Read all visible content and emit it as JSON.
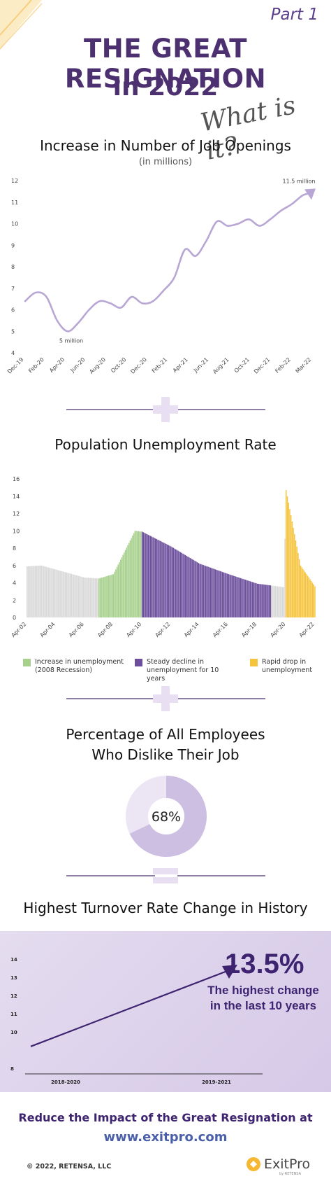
{
  "header": {
    "part": "Part 1",
    "title_line1": "THE GREAT RESIGNATION",
    "title_line2": "in 2022",
    "handwritten": "What is it?"
  },
  "colors": {
    "primary": "#4c3070",
    "line": "#b8a6d4",
    "recession": "#a6d08c",
    "decline": "#6c4e9c",
    "rapid": "#f6c43c",
    "neutral": "#d9d9d9",
    "plus": "#e8dff2"
  },
  "job_openings": {
    "title": "Increase in Number of Job Openings",
    "subtitle": "(in millions)",
    "min_label": "5 million",
    "max_label": "11.5 million"
  },
  "unemployment": {
    "title": "Population Unemployment Rate",
    "legend": [
      {
        "label": "Increase in unemployment (2008 Recession)",
        "color_key": "recession"
      },
      {
        "label": "Steady decline in unemployment for 10 years",
        "color_key": "decline"
      },
      {
        "label": "Rapid drop in unemployment",
        "color_key": "rapid"
      }
    ]
  },
  "dislike": {
    "title_line1": "Percentage of All Employees",
    "title_line2": "Who Dislike Their Job",
    "value_label": "68%"
  },
  "turnover": {
    "title": "Highest Turnover Rate Change in History",
    "stat": "13.5%",
    "desc_line1": "The highest change",
    "desc_line2": "in the last 10 years"
  },
  "footer": {
    "cta": "Reduce the Impact of the Great Resignation at",
    "url": "www.exitpro.com",
    "copyright": "© 2022, RETENSA, LLC",
    "brand": "ExitPro",
    "brand_sub": "by RETENSA"
  },
  "chart_data": [
    {
      "type": "line",
      "title": "Increase in Number of Job Openings",
      "subtitle": "(in millions)",
      "ylim": [
        4,
        12
      ],
      "yticks": [
        4,
        5,
        6,
        7,
        8,
        9,
        10,
        11,
        12
      ],
      "x_tick_labels": [
        "Dec-19",
        "Feb-20",
        "Apr-20",
        "Jun-20",
        "Aug-20",
        "Oct-20",
        "Dec-20",
        "Feb-21",
        "Apr-21",
        "Jun-21",
        "Aug-21",
        "Oct-21",
        "Dec-21",
        "Feb-22",
        "Mar-22"
      ],
      "x": [
        "Dec-19",
        "Jan-20",
        "Feb-20",
        "Mar-20",
        "Apr-20",
        "May-20",
        "Jun-20",
        "Jul-20",
        "Aug-20",
        "Sep-20",
        "Oct-20",
        "Nov-20",
        "Dec-20",
        "Jan-21",
        "Feb-21",
        "Mar-21",
        "Apr-21",
        "May-21",
        "Jun-21",
        "Jul-21",
        "Aug-21",
        "Sep-21",
        "Oct-21",
        "Nov-21",
        "Dec-21",
        "Jan-22",
        "Feb-22",
        "Mar-22"
      ],
      "values": [
        6.4,
        6.8,
        6.6,
        5.5,
        5.0,
        5.4,
        6.0,
        6.4,
        6.3,
        6.1,
        6.6,
        6.3,
        6.4,
        6.9,
        7.5,
        8.8,
        8.5,
        9.2,
        10.1,
        9.9,
        10.0,
        10.2,
        9.9,
        10.2,
        10.6,
        10.9,
        11.3,
        11.5
      ],
      "grid": false,
      "annotations": [
        "5 million",
        "11.5 million"
      ]
    },
    {
      "type": "bar",
      "title": "Population Unemployment Rate",
      "ylim": [
        0,
        16
      ],
      "yticks": [
        0,
        2,
        4,
        6,
        8,
        10,
        12,
        14,
        16
      ],
      "x_tick_labels": [
        "Apr-02",
        "Apr-04",
        "Apr-06",
        "Apr-08",
        "Apr-10",
        "Apr-12",
        "Apr-14",
        "Apr-16",
        "Apr-18",
        "Apr-20",
        "Apr-22"
      ],
      "segments": [
        {
          "name": "Increase in unemployment (2008 Recession)",
          "color": "#a6d08c"
        },
        {
          "name": "Steady decline in unemployment for 10 years",
          "color": "#6c4e9c"
        },
        {
          "name": "Rapid drop in unemployment",
          "color": "#f6c43c"
        }
      ],
      "key_points": [
        {
          "date": "Apr-02",
          "value": 5.9
        },
        {
          "date": "Apr-03",
          "value": 6.0
        },
        {
          "date": "Apr-06",
          "value": 4.6
        },
        {
          "date": "Apr-07",
          "value": 4.5
        },
        {
          "date": "Apr-08",
          "value": 5.0
        },
        {
          "date": "Oct-09",
          "value": 10.0
        },
        {
          "date": "Apr-10",
          "value": 9.9
        },
        {
          "date": "Apr-12",
          "value": 8.2
        },
        {
          "date": "Apr-14",
          "value": 6.2
        },
        {
          "date": "Apr-16",
          "value": 5.0
        },
        {
          "date": "Apr-18",
          "value": 3.9
        },
        {
          "date": "Feb-20",
          "value": 3.5
        },
        {
          "date": "Apr-20",
          "value": 14.7
        },
        {
          "date": "Apr-21",
          "value": 6.0
        },
        {
          "date": "Apr-22",
          "value": 3.6
        }
      ],
      "legend_position": "bottom"
    },
    {
      "type": "pie",
      "title": "Percentage of All Employees Who Dislike Their Job",
      "categories": [
        "Dislike their job",
        "Other"
      ],
      "values": [
        68,
        32
      ],
      "center_label": "68%"
    },
    {
      "type": "line",
      "title": "Highest Turnover Rate Change in History",
      "x": [
        "2018-2020",
        "2019-2021"
      ],
      "values": [
        9.2,
        13.5
      ],
      "ylim": [
        8,
        14
      ],
      "yticks": [
        8,
        10,
        11,
        12,
        13,
        14
      ],
      "annotations": [
        "13.5%",
        "The highest change in the last 10 years"
      ]
    }
  ]
}
